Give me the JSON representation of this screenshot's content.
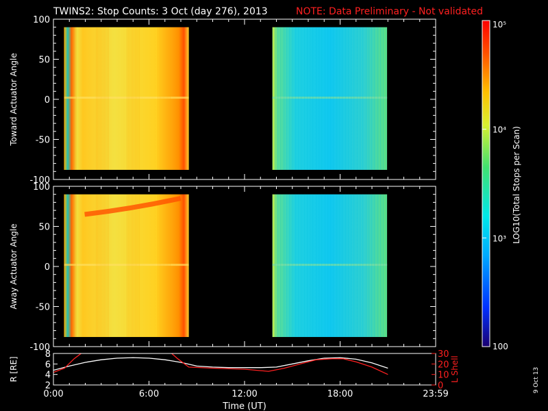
{
  "header": {
    "title": "TWINS2: Stop Counts:  3 Oct (day 276), 2013",
    "note": "NOTE: Data Preliminary - Not validated"
  },
  "colorbar": {
    "label": "LOG10(Total Stops per Scan)",
    "ticks": [
      {
        "value": 100,
        "label": "100"
      },
      {
        "value": 1000,
        "label": "10³"
      },
      {
        "value": 10000,
        "label": "10⁴"
      },
      {
        "value": 100000,
        "label": "10⁵"
      }
    ],
    "range": [
      100,
      100000
    ],
    "scale": "log"
  },
  "side_label": "9 Oct 13",
  "chart_data": [
    {
      "type": "heatmap",
      "ylabel": "Toward Actuator Angle",
      "ylim": [
        -100,
        100
      ],
      "yticks": [
        100,
        50,
        0,
        -50,
        -100
      ],
      "xlim": [
        0,
        24
      ],
      "data_blocks": [
        {
          "x_start": 0.67,
          "x_end": 8.5,
          "y_start": -88,
          "y_end": 90,
          "level": "high"
        },
        {
          "x_start": 13.75,
          "x_end": 20.95,
          "y_start": -88,
          "y_end": 90,
          "level": "medium"
        }
      ]
    },
    {
      "type": "heatmap",
      "ylabel": "Away Actuator Angle",
      "ylim": [
        -100,
        100
      ],
      "yticks": [
        100,
        50,
        0,
        -50,
        -100
      ],
      "xlim": [
        0,
        24
      ],
      "data_blocks": [
        {
          "x_start": 0.67,
          "x_end": 8.5,
          "y_start": -88,
          "y_end": 90,
          "level": "high"
        },
        {
          "x_start": 13.75,
          "x_end": 20.95,
          "y_start": -88,
          "y_end": 90,
          "level": "medium"
        }
      ]
    },
    {
      "type": "line",
      "ylabel": "R [RE]",
      "y2label": "L Shell",
      "xlabel": "Time (UT)",
      "xlim": [
        0,
        24
      ],
      "xticks": [
        "0:00",
        "6:00",
        "12:00",
        "18:00",
        "23:59"
      ],
      "ylim": [
        2,
        8
      ],
      "yticks": [
        2,
        4,
        6,
        8
      ],
      "y2lim": [
        0,
        30
      ],
      "y2ticks": [
        0,
        10,
        20,
        30
      ],
      "series": [
        {
          "axis": "left",
          "color": "#ffffff",
          "x": [
            0,
            1,
            2,
            3,
            4,
            5,
            6,
            7,
            8,
            9,
            10,
            11,
            12,
            13,
            14,
            15,
            16,
            17,
            18,
            19,
            20,
            21
          ],
          "y": [
            4.8,
            5.6,
            6.3,
            6.8,
            7.1,
            7.2,
            7.1,
            6.8,
            6.3,
            5.6,
            5.4,
            5.3,
            5.3,
            5.3,
            5.4,
            6.0,
            6.6,
            7.1,
            7.2,
            6.9,
            6.2,
            5.2
          ]
        },
        {
          "axis": "right",
          "color": "#ff2020",
          "x": [
            0,
            0.7,
            1.3,
            2.0,
            7.2,
            7.8,
            8.5,
            10,
            12,
            13.5,
            14.5,
            15.5,
            16.5,
            17.5,
            18.2,
            19,
            20,
            21
          ],
          "y": [
            12,
            16,
            25,
            33,
            33,
            25,
            17,
            16,
            15,
            13,
            16,
            20,
            24,
            25,
            25,
            22,
            17,
            10
          ]
        }
      ]
    }
  ]
}
